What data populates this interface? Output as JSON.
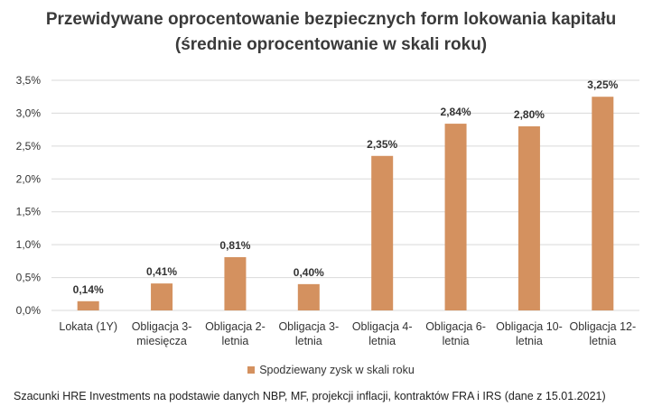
{
  "chart_data": {
    "type": "bar",
    "title": "Przewidywane oprocentowanie bezpiecznych form lokowania kapitału",
    "subtitle": "(średnie oprocentowanie w skali roku)",
    "categories": [
      [
        "Lokata (1Y)"
      ],
      [
        "Obligacja 3-",
        "miesięcza"
      ],
      [
        "Obligacja 2-",
        "letnia"
      ],
      [
        "Obligacja 3-",
        "letnia"
      ],
      [
        "Obligacja 4-",
        "letnia"
      ],
      [
        "Obligacja 6-",
        "letnia"
      ],
      [
        "Obligacja 10-",
        "letnia"
      ],
      [
        "Obligacja 12-",
        "letnia"
      ]
    ],
    "series": [
      {
        "name": "Spodziewany zysk w skali roku",
        "values": [
          0.14,
          0.41,
          0.81,
          0.4,
          2.35,
          2.84,
          2.8,
          3.25
        ],
        "data_labels": [
          "0,14%",
          "0,41%",
          "0,81%",
          "0,40%",
          "2,35%",
          "2,84%",
          "2,80%",
          "3,25%"
        ],
        "color": "#D4915F"
      }
    ],
    "ylim": [
      0,
      3.5
    ],
    "yticks": [
      0,
      0.5,
      1.0,
      1.5,
      2.0,
      2.5,
      3.0,
      3.5
    ],
    "ytick_labels": [
      "0,0%",
      "0,5%",
      "1,0%",
      "1,5%",
      "2,0%",
      "2,5%",
      "3,0%",
      "3,5%"
    ],
    "grid": true,
    "legend": "bottom",
    "gridline_color": "#d9d9d9"
  },
  "footnote": "Szacunki HRE Investments na podstawie danych NBP, MF, projekcji inflacji, kontraktów FRA i IRS (dane z 15.01.2021)"
}
